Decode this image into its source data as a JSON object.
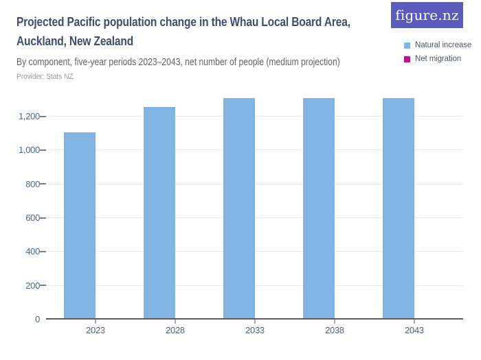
{
  "header": {
    "title": "Projected Pacific population change in the Whau Local Board Area, Auckland, New Zealand",
    "subtitle": "By component, five-year periods 2023–2043, net number of people (medium projection)",
    "provider": "Provider: Stats NZ",
    "logo_text": "figure.nz"
  },
  "colors": {
    "logo_bg": "#5a5bbd",
    "title_text": "#3e4e6e",
    "axis_text": "#4c6689",
    "gridline": "#e8e8e8",
    "natural_increase_blue": "#82b4e3",
    "net_migration_magenta": "#b2188c"
  },
  "legend": {
    "items": [
      {
        "label": "Natural increase",
        "color": "#82b4e3"
      },
      {
        "label": "Net migration",
        "color": "#b2188c"
      }
    ]
  },
  "chart_data": {
    "type": "bar",
    "title": "Projected Pacific population change in the Whau Local Board Area, Auckland, New Zealand",
    "subtitle": "By component, five-year periods 2023–2043, net number of people (medium projection)",
    "provider": "Provider: Stats NZ",
    "categories": [
      "2023",
      "2028",
      "2033",
      "2038",
      "2043"
    ],
    "series": [
      {
        "name": "Natural increase",
        "color": "#82b4e3",
        "values": [
          1100,
          1250,
          1300,
          1300,
          1300
        ]
      },
      {
        "name": "Net migration",
        "color": "#b2188c",
        "values": [
          0,
          0,
          0,
          0,
          0
        ]
      }
    ],
    "xlabel": "",
    "ylabel": "",
    "yticks": [
      0,
      200,
      400,
      600,
      800,
      1000,
      1200
    ],
    "ylim": [
      0,
      1320
    ],
    "grid": true,
    "legend_position": "top-right"
  }
}
